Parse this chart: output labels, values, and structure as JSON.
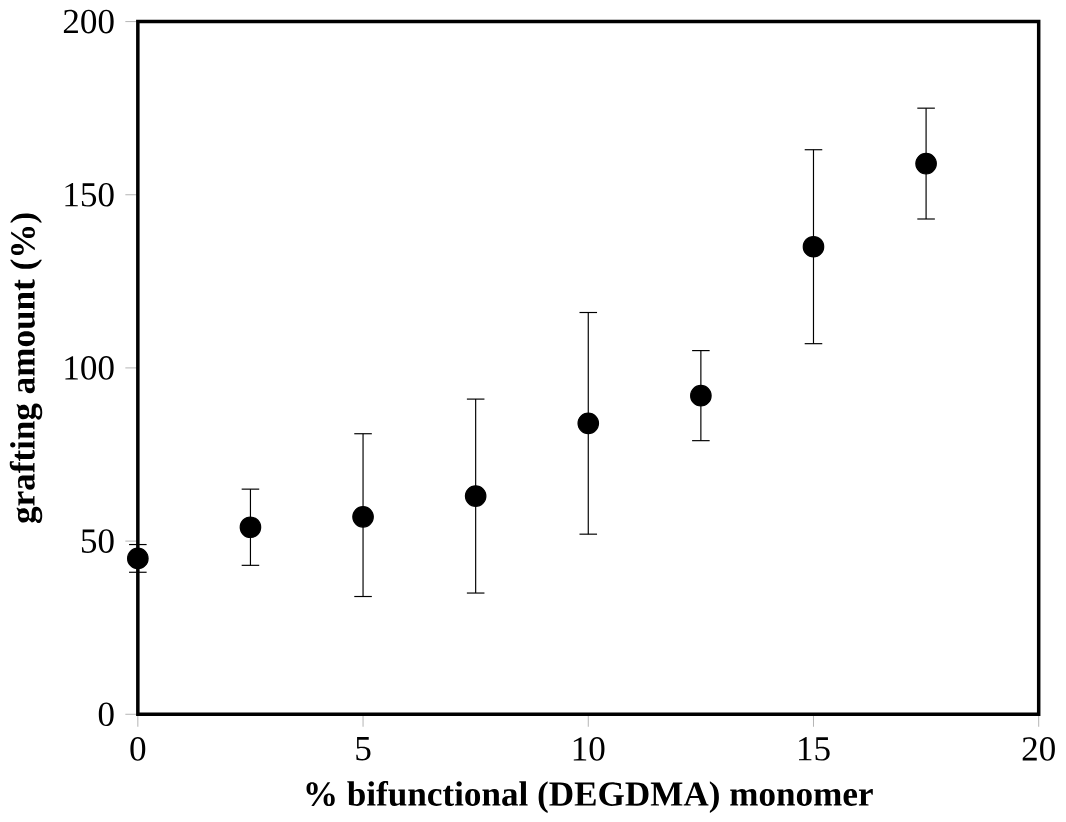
{
  "chart_data": {
    "type": "scatter",
    "xlabel": "% bifunctional (DEGDMA) monomer",
    "ylabel": "grafting amount (%)",
    "x": [
      0,
      2.5,
      5,
      7.5,
      10,
      12.5,
      15,
      17.5
    ],
    "values": [
      45,
      54,
      57,
      63,
      84,
      92,
      135,
      159
    ],
    "errors": [
      [
        41,
        49
      ],
      [
        43,
        65
      ],
      [
        34,
        81
      ],
      [
        35,
        91
      ],
      [
        52,
        116
      ],
      [
        79,
        105
      ],
      [
        107,
        163
      ],
      [
        143,
        175
      ]
    ],
    "color": "#000000",
    "marker": "circle",
    "xlim": [
      0,
      20
    ],
    "ylim": [
      0,
      200
    ],
    "xticks": [
      0,
      5,
      10,
      15,
      20
    ],
    "yticks": [
      0,
      50,
      100,
      150,
      200
    ]
  }
}
